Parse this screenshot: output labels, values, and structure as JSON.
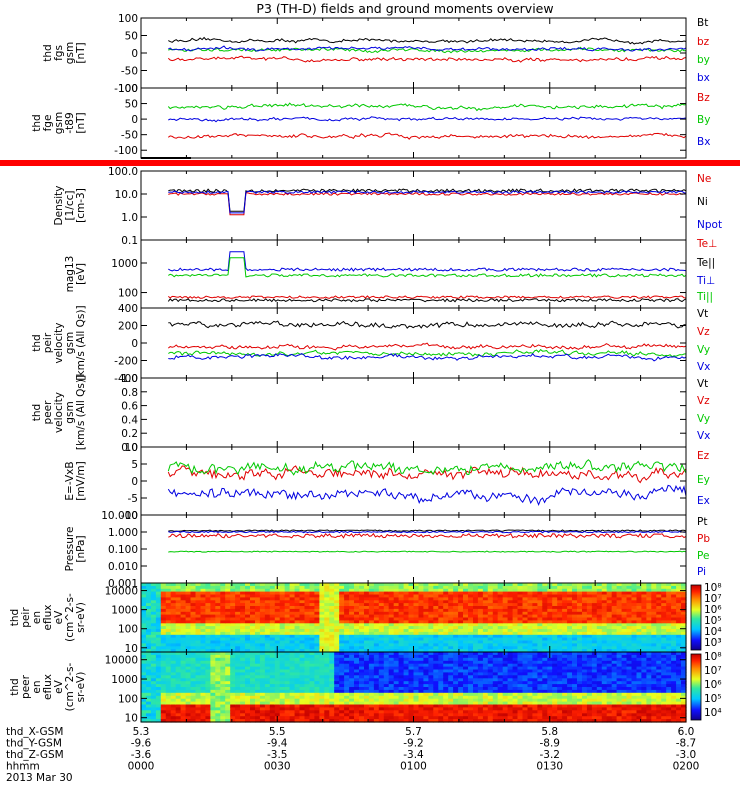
{
  "chart_data": {
    "type": "line",
    "title": "P3 (TH-D) fields and ground moments overview",
    "x_start_hhmm": "0000",
    "x_end_hhmm": "0200",
    "panels": [
      {
        "id": "fgs",
        "ylabel": [
          "thd",
          "fgs",
          "gsm",
          "[nT]"
        ],
        "ytick_labels": [
          "100",
          "50",
          "0",
          "-50",
          "-100"
        ],
        "ytick_values": [
          100,
          50,
          0,
          -50,
          -100
        ],
        "ylim": [
          -100,
          100
        ],
        "scale": "linear",
        "series": [
          {
            "name": "Bt",
            "color": "#000000",
            "level": 35,
            "noise": 6
          },
          {
            "name": "bz",
            "color": "#e00000",
            "level": -18,
            "noise": 7
          },
          {
            "name": "by",
            "color": "#00c800",
            "level": 8,
            "noise": 6
          },
          {
            "name": "bx",
            "color": "#0000e0",
            "level": 12,
            "noise": 6
          }
        ]
      },
      {
        "id": "fge",
        "ylabel": [
          "thd",
          "fge",
          "gsm",
          "-t89",
          "[nT]"
        ],
        "ytick_labels": [
          "100",
          "50",
          "0",
          "-50",
          "-100"
        ],
        "ytick_values": [
          100,
          50,
          0,
          -50,
          -100
        ],
        "ylim": [
          -125,
          100
        ],
        "scale": "linear",
        "series": [
          {
            "name": "Bz",
            "color": "#e00000",
            "level": -55,
            "noise": 8
          },
          {
            "name": "By",
            "color": "#00c800",
            "level": 40,
            "noise": 8
          },
          {
            "name": "Bx",
            "color": "#0000e0",
            "level": 0,
            "noise": 6
          }
        ]
      },
      {
        "id": "density",
        "ylabel": [
          "Density",
          "[1/cc]",
          "[cm-3]"
        ],
        "ytick_labels": [
          "100.0",
          "10.0",
          "1.0",
          "0.1"
        ],
        "ytick_values": [
          100,
          10,
          1,
          0.1
        ],
        "ylim": [
          0.1,
          100
        ],
        "scale": "log",
        "series": [
          {
            "name": "Ne",
            "color": "#e00000",
            "level": 10,
            "noise": 0.05
          },
          {
            "name": "Ni",
            "color": "#000000",
            "level": 14,
            "noise": 0.07
          },
          {
            "name": "Npot",
            "color": "#0000e0",
            "level": 12,
            "noise": 0.05
          }
        ]
      },
      {
        "id": "temp",
        "ylabel": [
          "mag13",
          "[eV]"
        ],
        "ytick_labels": [
          "1000",
          "100"
        ],
        "ytick_values": [
          1000,
          100
        ],
        "ylim": [
          30,
          6000
        ],
        "scale": "log",
        "series": [
          {
            "name": "Te⊥",
            "color": "#e00000",
            "level": 70,
            "noise": 0.04
          },
          {
            "name": "Te||",
            "color": "#000000",
            "level": 55,
            "noise": 0.05
          },
          {
            "name": "Ti⊥",
            "color": "#0000e0",
            "level": 600,
            "noise": 0.05
          },
          {
            "name": "Ti||",
            "color": "#00c800",
            "level": 380,
            "noise": 0.05
          }
        ]
      },
      {
        "id": "peir",
        "ylabel": [
          "thd",
          "peir",
          "velocity",
          "gsm",
          "[km/s (All Qs)]"
        ],
        "ytick_labels": [
          "400",
          "200",
          "0",
          "-200",
          "-400"
        ],
        "ytick_values": [
          400,
          200,
          0,
          -200,
          -400
        ],
        "ylim": [
          -400,
          400
        ],
        "scale": "linear",
        "series": [
          {
            "name": "Vt",
            "color": "#000000",
            "level": 210,
            "noise": 40
          },
          {
            "name": "Vz",
            "color": "#e00000",
            "level": -40,
            "noise": 30
          },
          {
            "name": "Vy",
            "color": "#00c800",
            "level": -120,
            "noise": 30
          },
          {
            "name": "Vx",
            "color": "#0000e0",
            "level": -160,
            "noise": 30
          }
        ]
      },
      {
        "id": "peer",
        "ylabel": [
          "thd",
          "peer",
          "velocity",
          "gsm",
          "[km/s (All Qs)]"
        ],
        "ytick_labels": [
          "1.0",
          "0.8",
          "0.6",
          "0.4",
          "0.2",
          "0.0"
        ],
        "ytick_values": [
          1.0,
          0.8,
          0.6,
          0.4,
          0.2,
          0.0
        ],
        "ylim": [
          0,
          1
        ],
        "scale": "linear",
        "series": [
          {
            "name": "Vt",
            "color": "#000000"
          },
          {
            "name": "Vz",
            "color": "#e00000"
          },
          {
            "name": "Vy",
            "color": "#00c800"
          },
          {
            "name": "Vx",
            "color": "#0000e0"
          }
        ],
        "empty": true
      },
      {
        "id": "efield",
        "ylabel": [
          "E=-VxB",
          "[mV/m]"
        ],
        "ytick_labels": [
          "10",
          "5",
          "0",
          "-5",
          "-10"
        ],
        "ytick_values": [
          10,
          5,
          0,
          -5,
          -10
        ],
        "ylim": [
          -10,
          10
        ],
        "scale": "linear",
        "series": [
          {
            "name": "Ez",
            "color": "#e00000",
            "level": 2,
            "noise": 2
          },
          {
            "name": "Ey",
            "color": "#00c800",
            "level": 4,
            "noise": 2
          },
          {
            "name": "Ex",
            "color": "#0000e0",
            "level": -4,
            "noise": 2
          }
        ]
      },
      {
        "id": "pressure",
        "ylabel": [
          "Pressure",
          "[nPa]"
        ],
        "ytick_labels": [
          "10.000",
          "1.000",
          "0.100",
          "0.010",
          "0.001"
        ],
        "ytick_values": [
          10,
          1,
          0.1,
          0.01,
          0.001
        ],
        "ylim": [
          0.001,
          10
        ],
        "scale": "log",
        "series": [
          {
            "name": "Pt",
            "color": "#000000",
            "level": 1.2,
            "noise": 0.04
          },
          {
            "name": "Pb",
            "color": "#e00000",
            "level": 0.6,
            "noise": 0.12
          },
          {
            "name": "Pe",
            "color": "#00c800",
            "level": 0.07,
            "noise": 0.03
          },
          {
            "name": "Pi",
            "color": "#0000e0",
            "level": 1.0,
            "noise": 0.04
          }
        ]
      },
      {
        "id": "peir_eflux",
        "type": "heatmap",
        "ylabel": [
          "thd",
          "peir",
          "en",
          "eflux",
          "eV",
          "(cm^2-s-",
          "sr-eV)"
        ],
        "ytick_labels": [
          "10000",
          "1000",
          "100",
          "10"
        ],
        "ytick_values": [
          10000,
          1000,
          100,
          10
        ],
        "ylim": [
          6,
          25000
        ],
        "scale": "log",
        "colorbar": {
          "labels": [
            "10⁸",
            "10⁷",
            "10⁶",
            "10⁵",
            "10⁴",
            "10³"
          ]
        }
      },
      {
        "id": "peer_eflux",
        "type": "heatmap",
        "ylabel": [
          "thd",
          "peer",
          "en",
          "eflux",
          "eV",
          "(cm^2-s-",
          "sr-eV)"
        ],
        "ytick_labels": [
          "10000",
          "1000",
          "100",
          "10"
        ],
        "ytick_values": [
          10000,
          1000,
          100,
          10
        ],
        "ylim": [
          6,
          25000
        ],
        "scale": "log",
        "colorbar": {
          "labels": [
            "10⁸",
            "10⁷",
            "10⁶",
            "10⁵",
            "10⁴"
          ]
        }
      }
    ],
    "x_axis": {
      "rows": [
        {
          "label": "thd_X-GSM",
          "values": [
            "5.3",
            "5.5",
            "5.7",
            "5.8",
            "6.0"
          ]
        },
        {
          "label": "thd_Y-GSM",
          "values": [
            "-9.6",
            "-9.4",
            "-9.2",
            "-8.9",
            "-8.7"
          ]
        },
        {
          "label": "thd_Z-GSM",
          "values": [
            "-3.6",
            "-3.5",
            "-3.4",
            "-3.2",
            "-3.0"
          ]
        },
        {
          "label": "hhmm",
          "values": [
            "0000",
            "0030",
            "0100",
            "0130",
            "0200"
          ]
        }
      ],
      "date": "2013 Mar 30"
    }
  }
}
